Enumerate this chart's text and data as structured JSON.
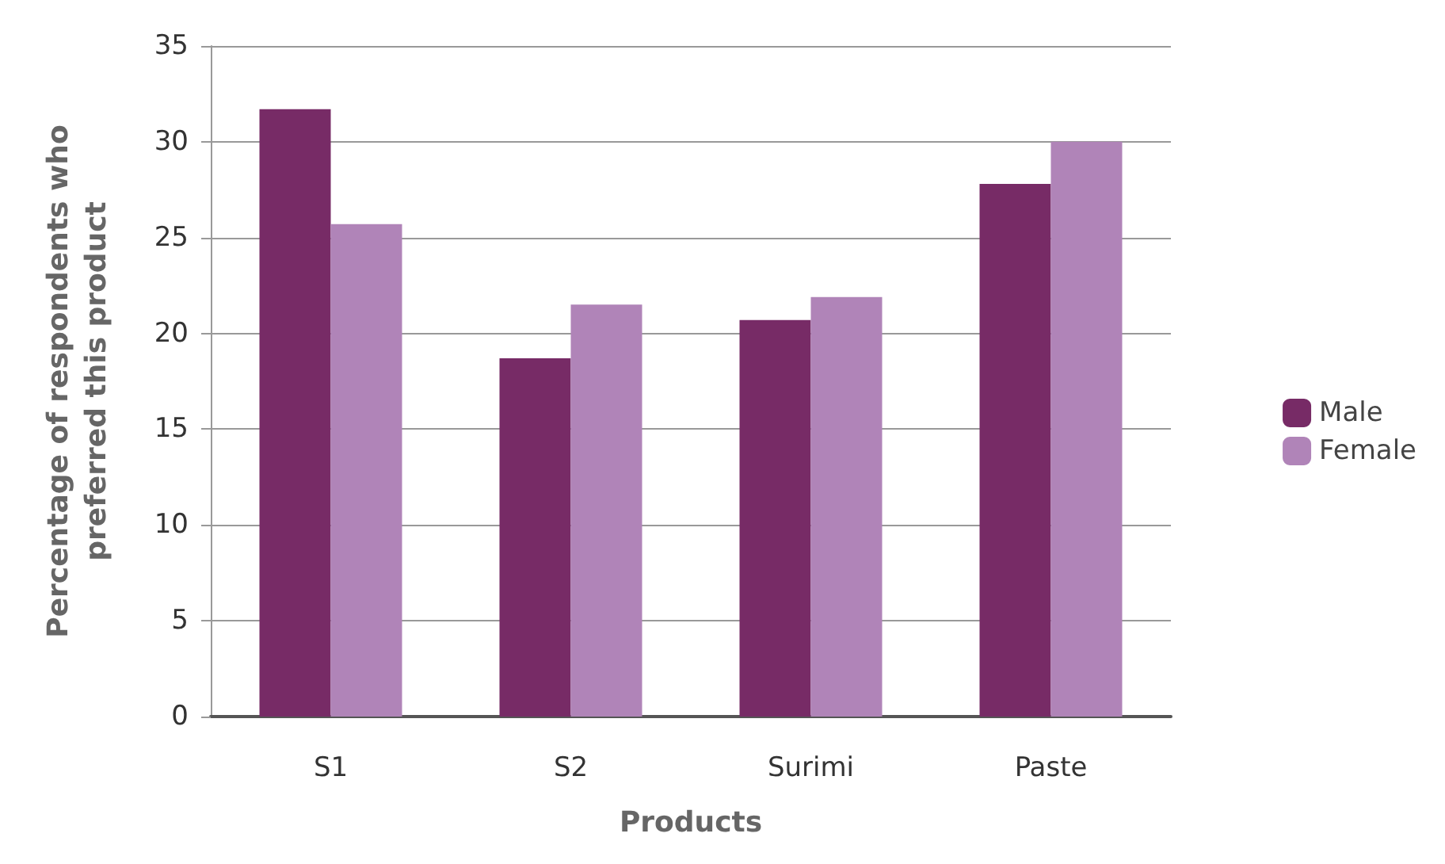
{
  "chart_data": {
    "type": "bar",
    "categories": [
      "S1",
      "S2",
      "Surimi",
      "Paste"
    ],
    "series": [
      {
        "name": "Male",
        "color": "#772b66",
        "values": [
          31.7,
          18.7,
          20.7,
          27.8
        ]
      },
      {
        "name": "Female",
        "color": "#b084b8",
        "values": [
          25.7,
          21.5,
          21.9,
          30.0
        ]
      }
    ],
    "xlabel": "Products",
    "ylabel": "Percentage of respondents who\npreferred this product",
    "ylim": [
      0,
      35
    ],
    "yticks": [
      0,
      5,
      10,
      15,
      20,
      25,
      30,
      35
    ],
    "grid": "y",
    "legend": "right"
  }
}
